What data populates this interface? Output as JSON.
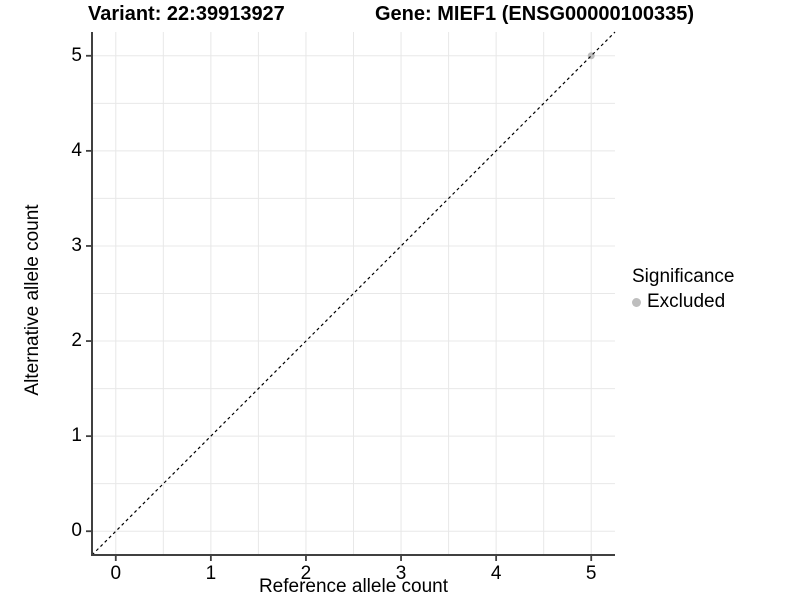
{
  "header": {
    "variant_title": "Variant: 22:39913927",
    "gene_title": "Gene: MIEF1 (ENSG00000100335)"
  },
  "legend": {
    "title": "Significance",
    "items": [
      {
        "label": "Excluded",
        "color": "#bebebe"
      }
    ]
  },
  "chart_data": {
    "type": "scatter",
    "titles": [
      "Variant: 22:39913927",
      "Gene: MIEF1 (ENSG00000100335)"
    ],
    "xlabel": "Reference allele count",
    "ylabel": "Alternative allele count",
    "xlim": [
      -0.25,
      5.25
    ],
    "ylim": [
      -0.25,
      5.25
    ],
    "xticks": [
      0,
      1,
      2,
      3,
      4,
      5
    ],
    "yticks": [
      0,
      1,
      2,
      3,
      4,
      5
    ],
    "grid": {
      "visible": true,
      "step": 0.5,
      "color": "#e8e8e8"
    },
    "identity_line": {
      "shown": true,
      "style": "dashed",
      "color": "#000000",
      "dash": [
        3,
        3
      ]
    },
    "series": [
      {
        "name": "Excluded",
        "color": "#bebebe",
        "points": [
          {
            "x": 5,
            "y": 5
          }
        ]
      }
    ],
    "legend_position": "right",
    "axis_color": "#404040",
    "background": "#ffffff"
  }
}
